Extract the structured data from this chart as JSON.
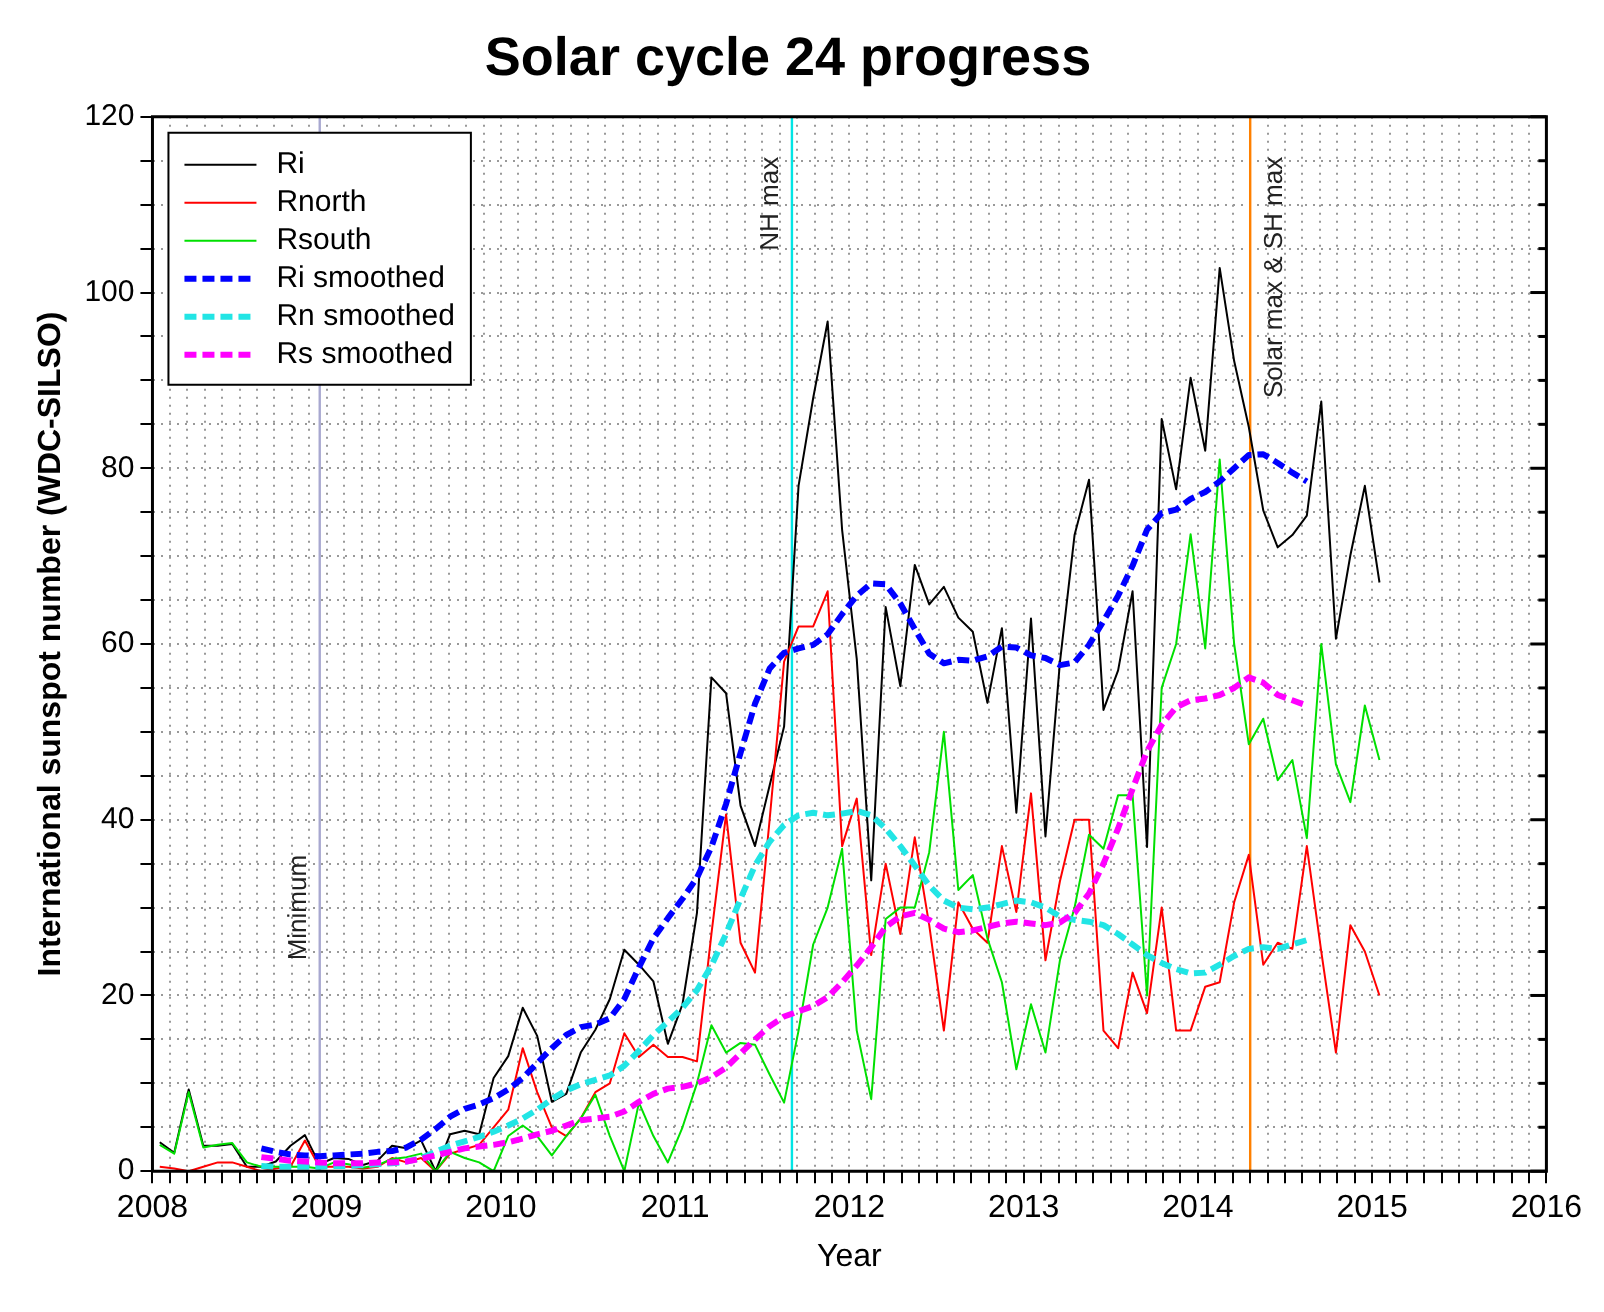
{
  "chart_data": {
    "type": "line",
    "title": "Solar cycle 24 progress",
    "xlabel": "Year",
    "ylabel": "International sunspot number (WDC-SILSO)",
    "x": [
      2008.042,
      2008.125,
      2008.208,
      2008.292,
      2008.375,
      2008.458,
      2008.542,
      2008.625,
      2008.708,
      2008.792,
      2008.875,
      2008.958,
      2009.042,
      2009.125,
      2009.208,
      2009.292,
      2009.375,
      2009.458,
      2009.542,
      2009.625,
      2009.708,
      2009.792,
      2009.875,
      2009.958,
      2010.042,
      2010.125,
      2010.208,
      2010.292,
      2010.375,
      2010.458,
      2010.542,
      2010.625,
      2010.708,
      2010.792,
      2010.875,
      2010.958,
      2011.042,
      2011.125,
      2011.208,
      2011.292,
      2011.375,
      2011.458,
      2011.542,
      2011.625,
      2011.708,
      2011.792,
      2011.875,
      2011.958,
      2012.042,
      2012.125,
      2012.208,
      2012.292,
      2012.375,
      2012.458,
      2012.542,
      2012.625,
      2012.708,
      2012.792,
      2012.875,
      2012.958,
      2013.042,
      2013.125,
      2013.208,
      2013.292,
      2013.375,
      2013.458,
      2013.542,
      2013.625,
      2013.708,
      2013.792,
      2013.875,
      2013.958,
      2014.042,
      2014.125,
      2014.208,
      2014.292,
      2014.375,
      2014.458,
      2014.542,
      2014.625,
      2014.708,
      2014.792,
      2014.875,
      2014.958,
      2015.042
    ],
    "series": [
      {
        "name": "Ri",
        "color": "#000000",
        "line_style": "solid",
        "values": [
          3.3,
          2.1,
          9.3,
          2.9,
          2.9,
          3.1,
          0.5,
          0.5,
          1.1,
          2.9,
          4.1,
          0.8,
          1.5,
          1.4,
          0.7,
          1.2,
          2.9,
          2.6,
          3.5,
          0.0,
          4.2,
          4.6,
          4.2,
          10.6,
          13.1,
          18.6,
          15.4,
          7.9,
          8.8,
          13.5,
          16.1,
          19.6,
          25.2,
          23.5,
          21.6,
          14.5,
          19.0,
          29.4,
          56.2,
          54.4,
          41.6,
          37.0,
          43.9,
          50.6,
          78.0,
          88.0,
          96.7,
          73.0,
          58.3,
          33.1,
          64.2,
          55.2,
          69.0,
          64.5,
          66.5,
          63.0,
          61.4,
          53.3,
          61.8,
          40.8,
          62.9,
          38.1,
          57.9,
          72.4,
          78.7,
          52.5,
          57.0,
          66.0,
          36.9,
          85.6,
          77.6,
          90.3,
          82.0,
          102.8,
          92.2,
          84.7,
          75.2,
          71.0,
          72.4,
          74.6,
          87.6,
          60.6,
          70.1,
          78.0,
          67.0
        ]
      },
      {
        "name": "Rnorth",
        "color": "#ff0000",
        "line_style": "solid",
        "values": [
          0.5,
          0.3,
          0,
          0.5,
          1,
          1,
          0.5,
          0,
          0.3,
          0.5,
          3.5,
          0.5,
          0.5,
          0.5,
          0.3,
          0.5,
          1.5,
          1,
          1.5,
          0,
          2,
          2.5,
          3,
          5,
          7,
          14,
          9,
          5,
          4,
          6,
          9,
          10,
          15.7,
          13,
          14.4,
          13,
          13,
          12.5,
          27,
          40.6,
          26,
          22.6,
          40,
          58,
          62,
          62,
          66,
          37,
          42.4,
          24.6,
          35,
          27,
          38,
          28,
          16,
          30.6,
          27.6,
          26,
          37,
          29.5,
          43,
          24,
          33,
          40,
          40,
          16,
          14,
          22.6,
          18,
          30,
          16,
          16,
          21,
          21.5,
          30.6,
          36,
          23.5,
          26,
          25.3,
          37,
          25,
          13.5,
          28,
          25,
          20
        ]
      },
      {
        "name": "Rsouth",
        "color": "#00e000",
        "line_style": "solid",
        "values": [
          3,
          2,
          9,
          2.7,
          3,
          3.2,
          1,
          0.5,
          0.5,
          0.5,
          0.5,
          0.3,
          1,
          0.8,
          0.4,
          0.7,
          1.4,
          1.6,
          2,
          0,
          2.2,
          1.5,
          1,
          0,
          4,
          5.2,
          4,
          1.8,
          4,
          6,
          8.7,
          4,
          0,
          7.8,
          4,
          1,
          5,
          10,
          16.6,
          13.5,
          14.6,
          14.4,
          11,
          7.8,
          16,
          25.8,
          30,
          36.7,
          16,
          8.2,
          28.7,
          30,
          30,
          36.3,
          50,
          32,
          33.7,
          26.5,
          21.5,
          11.6,
          19,
          13.5,
          24,
          30,
          38.3,
          36.7,
          42.8,
          42.8,
          20,
          55,
          60,
          72.5,
          59.5,
          81,
          60,
          48.6,
          51.5,
          44.5,
          46.8,
          37.9,
          60,
          46.3,
          42,
          53,
          46.8
        ]
      },
      {
        "name": "Ri smoothed",
        "color": "#0000ff",
        "line_style": "dashed",
        "x": [
          2008.625,
          2008.708,
          2008.792,
          2008.875,
          2008.958,
          2009.042,
          2009.125,
          2009.208,
          2009.292,
          2009.375,
          2009.458,
          2009.542,
          2009.625,
          2009.708,
          2009.792,
          2009.875,
          2009.958,
          2010.042,
          2010.125,
          2010.208,
          2010.292,
          2010.375,
          2010.458,
          2010.542,
          2010.625,
          2010.708,
          2010.792,
          2010.875,
          2010.958,
          2011.042,
          2011.125,
          2011.208,
          2011.292,
          2011.375,
          2011.458,
          2011.542,
          2011.625,
          2011.708,
          2011.792,
          2011.875,
          2011.958,
          2012.042,
          2012.125,
          2012.208,
          2012.292,
          2012.375,
          2012.458,
          2012.542,
          2012.625,
          2012.708,
          2012.792,
          2012.875,
          2012.958,
          2013.042,
          2013.125,
          2013.208,
          2013.292,
          2013.375,
          2013.458,
          2013.542,
          2013.625,
          2013.708,
          2013.792,
          2013.875,
          2013.958,
          2014.042,
          2014.125,
          2014.208,
          2014.292,
          2014.375,
          2014.458,
          2014.542,
          2014.625
        ],
        "values": [
          2.6,
          2.2,
          1.9,
          1.8,
          1.7,
          1.8,
          1.9,
          2.0,
          2.2,
          2.3,
          2.7,
          3.6,
          4.8,
          6.2,
          7.1,
          7.6,
          8.3,
          9.3,
          10.6,
          12.3,
          14.0,
          15.5,
          16.4,
          16.7,
          17.4,
          19.6,
          23.2,
          26.5,
          28.8,
          31.0,
          33.4,
          36.9,
          41.8,
          47.6,
          53.2,
          57.2,
          59.0,
          59.5,
          59.9,
          61.1,
          63.4,
          65.5,
          66.9,
          66.8,
          64.6,
          61.7,
          58.9,
          57.8,
          58.2,
          58.1,
          58.6,
          59.7,
          59.6,
          58.7,
          58.4,
          57.6,
          57.9,
          59.9,
          62.6,
          65.5,
          68.9,
          73.0,
          74.9,
          75.3,
          76.5,
          77.3,
          78.5,
          80.0,
          81.5,
          81.6,
          80.6,
          79.5,
          78.5
        ]
      },
      {
        "name": "Rn smoothed",
        "color": "#22e5e5",
        "line_style": "dashed",
        "x": [
          2008.625,
          2008.708,
          2008.792,
          2008.875,
          2008.958,
          2009.042,
          2009.125,
          2009.208,
          2009.292,
          2009.375,
          2009.458,
          2009.542,
          2009.625,
          2009.708,
          2009.792,
          2009.875,
          2009.958,
          2010.042,
          2010.125,
          2010.208,
          2010.292,
          2010.375,
          2010.458,
          2010.542,
          2010.625,
          2010.708,
          2010.792,
          2010.875,
          2010.958,
          2011.042,
          2011.125,
          2011.208,
          2011.292,
          2011.375,
          2011.458,
          2011.542,
          2011.625,
          2011.708,
          2011.792,
          2011.875,
          2011.958,
          2012.042,
          2012.125,
          2012.208,
          2012.292,
          2012.375,
          2012.458,
          2012.542,
          2012.625,
          2012.708,
          2012.792,
          2012.875,
          2012.958,
          2013.042,
          2013.125,
          2013.208,
          2013.292,
          2013.375,
          2013.458,
          2013.542,
          2013.625,
          2013.708,
          2013.792,
          2013.875,
          2013.958,
          2014.042,
          2014.125,
          2014.208,
          2014.292,
          2014.375,
          2014.458,
          2014.542,
          2014.625
        ],
        "values": [
          0.6,
          0.5,
          0.5,
          0.5,
          0.5,
          0.6,
          0.6,
          0.7,
          0.8,
          0.9,
          1.1,
          1.5,
          2.2,
          2.9,
          3.4,
          3.9,
          4.5,
          5.2,
          6.0,
          7.0,
          8.2,
          9.2,
          9.9,
          10.4,
          10.9,
          12.0,
          13.7,
          15.5,
          17.0,
          18.6,
          20.6,
          23.4,
          27.0,
          31.0,
          34.8,
          37.5,
          39.4,
          40.5,
          40.8,
          40.5,
          40.7,
          41.0,
          40.5,
          39.0,
          37.0,
          34.8,
          32.5,
          30.8,
          30.0,
          29.8,
          30.0,
          30.4,
          30.8,
          30.6,
          30.0,
          29.0,
          28.6,
          28.4,
          28.0,
          27.0,
          25.8,
          24.6,
          23.7,
          23.0,
          22.5,
          22.6,
          23.5,
          24.5,
          25.3,
          25.5,
          25.3,
          25.8,
          26.3
        ]
      },
      {
        "name": "Rs smoothed",
        "color": "#ff00ff",
        "line_style": "dashed",
        "x": [
          2008.625,
          2008.708,
          2008.792,
          2008.875,
          2008.958,
          2009.042,
          2009.125,
          2009.208,
          2009.292,
          2009.375,
          2009.458,
          2009.542,
          2009.625,
          2009.708,
          2009.792,
          2009.875,
          2009.958,
          2010.042,
          2010.125,
          2010.208,
          2010.292,
          2010.375,
          2010.458,
          2010.542,
          2010.625,
          2010.708,
          2010.792,
          2010.875,
          2010.958,
          2011.042,
          2011.125,
          2011.208,
          2011.292,
          2011.375,
          2011.458,
          2011.542,
          2011.625,
          2011.708,
          2011.792,
          2011.875,
          2011.958,
          2012.042,
          2012.125,
          2012.208,
          2012.292,
          2012.375,
          2012.458,
          2012.542,
          2012.625,
          2012.708,
          2012.792,
          2012.875,
          2012.958,
          2013.042,
          2013.125,
          2013.208,
          2013.292,
          2013.375,
          2013.458,
          2013.542,
          2013.625,
          2013.708,
          2013.792,
          2013.875,
          2013.958,
          2014.042,
          2014.125,
          2014.208,
          2014.292,
          2014.375,
          2014.458,
          2014.542,
          2014.625
        ],
        "values": [
          1.6,
          1.4,
          1.2,
          1.1,
          1.0,
          0.9,
          0.9,
          0.9,
          1.0,
          1.0,
          1.1,
          1.4,
          1.8,
          2.2,
          2.6,
          2.8,
          3.0,
          3.3,
          3.7,
          4.2,
          4.6,
          5.2,
          5.8,
          6.0,
          6.2,
          6.8,
          7.9,
          8.8,
          9.4,
          9.6,
          10.0,
          10.7,
          11.8,
          13.4,
          15.0,
          16.5,
          17.6,
          18.2,
          18.8,
          19.8,
          21.5,
          23.4,
          25.5,
          27.8,
          29.0,
          29.4,
          28.6,
          27.6,
          27.2,
          27.4,
          27.8,
          28.2,
          28.4,
          28.2,
          28.0,
          28.3,
          29.4,
          31.6,
          35.0,
          39.0,
          43.5,
          47.8,
          50.8,
          52.8,
          53.6,
          53.8,
          54.2,
          55.0,
          56.2,
          55.6,
          54.2,
          53.6,
          53.0
        ]
      }
    ],
    "xlim": [
      2008,
      2016
    ],
    "xticks": [
      2008,
      {
        "value": 2008.1,
        "label": null
      },
      {
        "value": 2008.2,
        "label": null
      },
      {
        "value": 2008.3,
        "label": null
      },
      {
        "value": 2008.4,
        "label": null
      },
      {
        "value": 2008.5,
        "label": null
      },
      {
        "value": 2008.6,
        "label": null
      },
      {
        "value": 2008.7,
        "label": null
      },
      {
        "value": 2008.8,
        "label": null
      },
      {
        "value": 2008.9,
        "label": null
      },
      2009,
      {
        "value": 2009.1,
        "label": null
      },
      {
        "value": 2009.2,
        "label": null
      },
      {
        "value": 2009.3,
        "label": null
      },
      {
        "value": 2009.4,
        "label": null
      },
      {
        "value": 2009.5,
        "label": null
      },
      {
        "value": 2009.6,
        "label": null
      },
      {
        "value": 2009.7,
        "label": null
      },
      {
        "value": 2009.8,
        "label": null
      },
      {
        "value": 2009.9,
        "label": null
      },
      2010,
      {
        "value": 2010.1,
        "label": null
      },
      {
        "value": 2010.2,
        "label": null
      },
      {
        "value": 2010.3,
        "label": null
      },
      {
        "value": 2010.4,
        "label": null
      },
      {
        "value": 2010.5,
        "label": null
      },
      {
        "value": 2010.6,
        "label": null
      },
      {
        "value": 2010.7,
        "label": null
      },
      {
        "value": 2010.8,
        "label": null
      },
      {
        "value": 2010.9,
        "label": null
      },
      2011,
      {
        "value": 2011.1,
        "label": null
      },
      {
        "value": 2011.2,
        "label": null
      },
      {
        "value": 2011.3,
        "label": null
      },
      {
        "value": 2011.4,
        "label": null
      },
      {
        "value": 2011.5,
        "label": null
      },
      {
        "value": 2011.6,
        "label": null
      },
      {
        "value": 2011.7,
        "label": null
      },
      {
        "value": 2011.8,
        "label": null
      },
      {
        "value": 2011.9,
        "label": null
      },
      2012,
      {
        "value": 2012.1,
        "label": null
      },
      {
        "value": 2012.2,
        "label": null
      },
      {
        "value": 2012.3,
        "label": null
      },
      {
        "value": 2012.4,
        "label": null
      },
      {
        "value": 2012.5,
        "label": null
      },
      {
        "value": 2012.6,
        "label": null
      },
      {
        "value": 2012.7,
        "label": null
      },
      {
        "value": 2012.8,
        "label": null
      },
      {
        "value": 2012.9,
        "label": null
      },
      2013,
      {
        "value": 2013.1,
        "label": null
      },
      {
        "value": 2013.2,
        "label": null
      },
      {
        "value": 2013.3,
        "label": null
      },
      {
        "value": 2013.4,
        "label": null
      },
      {
        "value": 2013.5,
        "label": null
      },
      {
        "value": 2013.6,
        "label": null
      },
      {
        "value": 2013.7,
        "label": null
      },
      {
        "value": 2013.8,
        "label": null
      },
      {
        "value": 2013.9,
        "label": null
      },
      2014,
      {
        "value": 2014.1,
        "label": null
      },
      {
        "value": 2014.2,
        "label": null
      },
      {
        "value": 2014.3,
        "label": null
      },
      {
        "value": 2014.4,
        "label": null
      },
      {
        "value": 2014.5,
        "label": null
      },
      {
        "value": 2014.6,
        "label": null
      },
      {
        "value": 2014.7,
        "label": null
      },
      {
        "value": 2014.8,
        "label": null
      },
      {
        "value": 2014.9,
        "label": null
      },
      2015,
      {
        "value": 2015.1,
        "label": null
      },
      {
        "value": 2015.2,
        "label": null
      },
      {
        "value": 2015.3,
        "label": null
      },
      {
        "value": 2015.4,
        "label": null
      },
      {
        "value": 2015.5,
        "label": null
      },
      {
        "value": 2015.6,
        "label": null
      },
      {
        "value": 2015.7,
        "label": null
      },
      {
        "value": 2015.8,
        "label": null
      },
      {
        "value": 2015.9,
        "label": null
      },
      2016
    ],
    "ylim": [
      0,
      120
    ],
    "yticks": [
      0,
      {
        "value": 5,
        "label": null
      },
      {
        "value": 10,
        "label": null
      },
      {
        "value": 15,
        "label": null
      },
      20,
      {
        "value": 25,
        "label": null
      },
      {
        "value": 30,
        "label": null
      },
      {
        "value": 35,
        "label": null
      },
      40,
      {
        "value": 45,
        "label": null
      },
      {
        "value": 50,
        "label": null
      },
      {
        "value": 55,
        "label": null
      },
      60,
      {
        "value": 65,
        "label": null
      },
      {
        "value": 70,
        "label": null
      },
      {
        "value": 75,
        "label": null
      },
      80,
      {
        "value": 85,
        "label": null
      },
      {
        "value": 90,
        "label": null
      },
      {
        "value": 95,
        "label": null
      },
      100,
      {
        "value": 105,
        "label": null
      },
      {
        "value": 110,
        "label": null
      },
      {
        "value": 115,
        "label": null
      },
      120
    ],
    "ref_lines": [
      {
        "axis": "x",
        "value": 2008.96,
        "label": "Minimum",
        "color": "#a8a8d0"
      },
      {
        "axis": "x",
        "value": 2011.67,
        "label": "NH max",
        "color": "#00e5e5"
      },
      {
        "axis": "x",
        "value": 2014.3,
        "label": "Solar max & SH max",
        "color": "#ff8000"
      }
    ],
    "grid": true,
    "legend": "top left",
    "marker": "none"
  }
}
